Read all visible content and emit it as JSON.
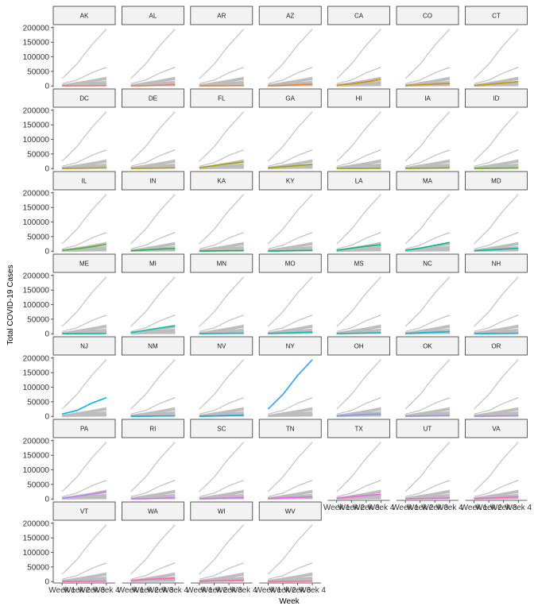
{
  "chart_data": {
    "type": "line",
    "title": "",
    "xlabel": "Week",
    "ylabel": "Total COVID-19 Cases",
    "x_categories": [
      "Week 1",
      "Week 2",
      "Week 3",
      "Week 4"
    ],
    "y_ticks": [
      0,
      50000,
      100000,
      150000,
      200000
    ],
    "y_tick_labels": [
      "0",
      "50000",
      "100000",
      "150000",
      "200000"
    ],
    "ylim": [
      -5000,
      205000
    ],
    "grid": false,
    "legend": "none",
    "facets": [
      {
        "state": "AK",
        "values": [
          150,
          450,
          700,
          900
        ],
        "color": "#F8766D"
      },
      {
        "state": "AL",
        "values": [
          100,
          1000,
          2500,
          4500
        ],
        "color": "#F37B59"
      },
      {
        "state": "AR",
        "values": [
          200,
          500,
          800,
          1000
        ],
        "color": "#ED8141"
      },
      {
        "state": "AZ",
        "values": [
          500,
          2000,
          4000,
          6000
        ],
        "color": "#E6862F"
      },
      {
        "state": "CA",
        "values": [
          2500,
          7000,
          14000,
          22000
        ],
        "color": "#DE8C00"
      },
      {
        "state": "CO",
        "values": [
          1500,
          4000,
          6500,
          8500
        ],
        "color": "#D59100"
      },
      {
        "state": "CT",
        "values": [
          1500,
          5000,
          10000,
          15000
        ],
        "color": "#CC9600"
      },
      {
        "state": "DC",
        "values": [
          200,
          800,
          1500,
          2500
        ],
        "color": "#C19A00"
      },
      {
        "state": "DE",
        "values": [
          200,
          800,
          1500,
          2500
        ],
        "color": "#B59E00"
      },
      {
        "state": "FL",
        "values": [
          3000,
          10000,
          17000,
          22000
        ],
        "color": "#A9A200"
      },
      {
        "state": "GA",
        "values": [
          2000,
          6000,
          10000,
          14000
        ],
        "color": "#9CA700"
      },
      {
        "state": "HI",
        "values": [
          100,
          300,
          400,
          500
        ],
        "color": "#8EAB00"
      },
      {
        "state": "IA",
        "values": [
          200,
          800,
          1500,
          2000
        ],
        "color": "#7CAE00"
      },
      {
        "state": "ID",
        "values": [
          300,
          1000,
          1400,
          1600
        ],
        "color": "#68B100"
      },
      {
        "state": "IL",
        "values": [
          3000,
          8000,
          15000,
          23000
        ],
        "color": "#4FB433"
      },
      {
        "state": "IN",
        "values": [
          1500,
          4000,
          7000,
          9000
        ],
        "color": "#22B64A"
      },
      {
        "state": "KA",
        "values": [
          300,
          800,
          1200,
          1500
        ],
        "color": "#00B85C"
      },
      {
        "state": "KY",
        "values": [
          300,
          1000,
          1800,
          2500
        ],
        "color": "#00BA6B"
      },
      {
        "state": "LA",
        "values": [
          3000,
          10000,
          17000,
          21000
        ],
        "color": "#00BB79"
      },
      {
        "state": "MA",
        "values": [
          3000,
          10000,
          20000,
          30000
        ],
        "color": "#00BC87"
      },
      {
        "state": "MD",
        "values": [
          1500,
          4000,
          7000,
          10000
        ],
        "color": "#00BD94"
      },
      {
        "state": "ME",
        "values": [
          200,
          400,
          600,
          800
        ],
        "color": "#00BFA1"
      },
      {
        "state": "MI",
        "values": [
          4000,
          12000,
          20000,
          27000
        ],
        "color": "#00BFAD"
      },
      {
        "state": "MN",
        "values": [
          300,
          800,
          1200,
          1700
        ],
        "color": "#00C0B9"
      },
      {
        "state": "MO",
        "values": [
          1000,
          2500,
          4000,
          5500
        ],
        "color": "#00BFC4"
      },
      {
        "state": "MS",
        "values": [
          500,
          1500,
          2500,
          3500
        ],
        "color": "#00BDD0"
      },
      {
        "state": "NC",
        "values": [
          1000,
          3000,
          5000,
          7000
        ],
        "color": "#00BBDC"
      },
      {
        "state": "NH",
        "values": [
          200,
          500,
          800,
          1200
        ],
        "color": "#00B8E7"
      },
      {
        "state": "NJ",
        "values": [
          8000,
          20000,
          45000,
          64000
        ],
        "color": "#00B4F0"
      },
      {
        "state": "NM",
        "values": [
          200,
          600,
          1100,
          1500
        ],
        "color": "#00AFF8"
      },
      {
        "state": "NV",
        "values": [
          500,
          1500,
          2500,
          3500
        ],
        "color": "#00A9FF"
      },
      {
        "state": "NY",
        "values": [
          25000,
          75000,
          140000,
          195000
        ],
        "color": "#35A2FF"
      },
      {
        "state": "OH",
        "values": [
          1500,
          4000,
          6500,
          8000
        ],
        "color": "#7B9AFF"
      },
      {
        "state": "OK",
        "values": [
          500,
          1200,
          1800,
          2500
        ],
        "color": "#9C8FFF"
      },
      {
        "state": "OR",
        "values": [
          300,
          800,
          1200,
          1700
        ],
        "color": "#B385FF"
      },
      {
        "state": "PA",
        "values": [
          3000,
          9000,
          17000,
          25000
        ],
        "color": "#C77CFF"
      },
      {
        "state": "RI",
        "values": [
          300,
          1000,
          2500,
          4000
        ],
        "color": "#D573FD"
      },
      {
        "state": "SC",
        "values": [
          800,
          2000,
          3500,
          4500
        ],
        "color": "#E16BF7"
      },
      {
        "state": "TN",
        "values": [
          1500,
          4000,
          5500,
          7000
        ],
        "color": "#EA66EF"
      },
      {
        "state": "TX",
        "values": [
          2500,
          7000,
          12000,
          16000
        ],
        "color": "#F264E6"
      },
      {
        "state": "UT",
        "values": [
          800,
          1500,
          2200,
          2800
        ],
        "color": "#F863DC"
      },
      {
        "state": "VA",
        "values": [
          1000,
          3000,
          5000,
          7000
        ],
        "color": "#FC61D1"
      },
      {
        "state": "VT",
        "values": [
          200,
          500,
          700,
          800
        ],
        "color": "#FF62C5"
      },
      {
        "state": "WA",
        "values": [
          4000,
          7000,
          9500,
          11000
        ],
        "color": "#FF64B9"
      },
      {
        "state": "WI",
        "values": [
          1000,
          2500,
          3500,
          4500
        ],
        "color": "#FF66AA"
      },
      {
        "state": "WV",
        "values": [
          100,
          400,
          600,
          800
        ],
        "color": "#FF6A9B"
      }
    ],
    "background_color": "#bdbdbd",
    "strip_fill": "#f2f2f2"
  }
}
